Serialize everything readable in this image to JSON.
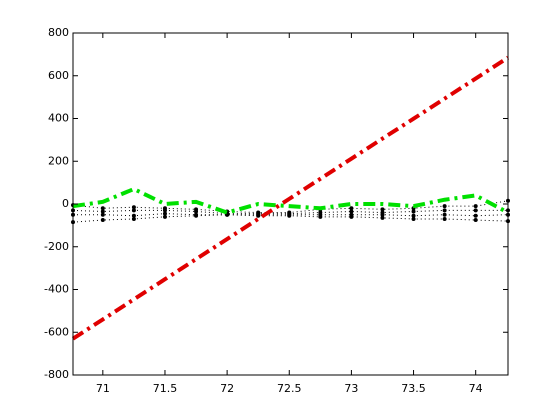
{
  "chart_data": {
    "type": "line",
    "x": [
      70.76,
      71.0,
      71.25,
      71.5,
      71.75,
      72.0,
      72.25,
      72.5,
      72.75,
      73.0,
      73.25,
      73.5,
      73.75,
      74.0,
      74.26
    ],
    "series": [
      {
        "color": "#000000",
        "style": "dotted",
        "width": 1,
        "marker": "dot",
        "values": [
          -5,
          -20,
          -15,
          -20,
          -25,
          -35,
          -40,
          -40,
          -25,
          -20,
          -25,
          -20,
          -10,
          -10,
          15
        ]
      },
      {
        "color": "#000000",
        "style": "dotted",
        "width": 1,
        "marker": "dot",
        "values": [
          -30,
          -35,
          -30,
          -30,
          -35,
          -45,
          -45,
          -45,
          -40,
          -35,
          -40,
          -35,
          -30,
          -30,
          -30
        ]
      },
      {
        "color": "#000000",
        "style": "dotted",
        "width": 1,
        "marker": "dot",
        "values": [
          -50,
          -50,
          -55,
          -45,
          -50,
          -50,
          -50,
          -50,
          -50,
          -50,
          -50,
          -55,
          -50,
          -55,
          -50
        ]
      },
      {
        "color": "#000000",
        "style": "dotted",
        "width": 1,
        "marker": "dot",
        "values": [
          -85,
          -75,
          -70,
          -60,
          -55,
          -50,
          -55,
          -55,
          -60,
          -60,
          -65,
          -70,
          -70,
          -75,
          -80
        ]
      },
      {
        "color": "#00e000",
        "style": "dashdot",
        "width": 4,
        "values": [
          -10,
          10,
          70,
          0,
          10,
          -40,
          0,
          -10,
          -20,
          0,
          0,
          -10,
          20,
          40,
          -40
        ]
      },
      {
        "color": "#e00000",
        "style": "dashdot",
        "width": 4,
        "values": [
          -630,
          -540,
          -446,
          -352,
          -258,
          -164,
          -70,
          24,
          118,
          212,
          306,
          399,
          493,
          587,
          685
        ]
      }
    ],
    "xlim": [
      70.76,
      74.26
    ],
    "xticks": [
      71,
      71.5,
      72,
      72.5,
      73,
      73.5,
      74
    ],
    "ylim": [
      -800,
      800
    ],
    "yticks": [
      -800,
      -600,
      -400,
      -200,
      0,
      200,
      400,
      600,
      800
    ],
    "grid": false
  }
}
